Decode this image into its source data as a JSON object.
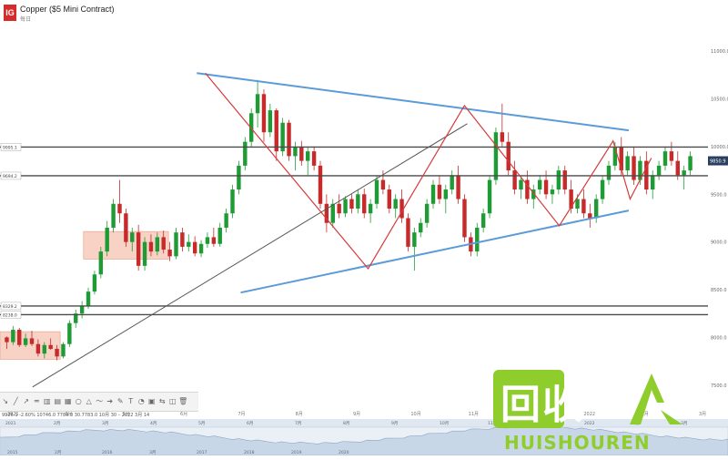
{
  "header": {
    "logo_text": "IG",
    "title": "Copper ($5 Mini Contract)",
    "subtitle": "每日"
  },
  "toolbar": {
    "icons": [
      "cursor-icon",
      "line-icon",
      "ray-icon",
      "hline-icon",
      "channel-icon",
      "fib-icon",
      "rect-icon",
      "ellipse-icon",
      "triangle-icon",
      "path-icon",
      "arrow-icon",
      "brush-icon",
      "text-icon",
      "callout-icon",
      "note-icon",
      "ruler-icon",
      "measure-icon",
      "trash-icon"
    ],
    "glyphs": [
      "↘",
      "╱",
      "↗",
      "═",
      "▥",
      "▤",
      "▦",
      "○",
      "△",
      "〜",
      "➔",
      "✎",
      "T",
      "◔",
      "▣",
      "⇆",
      "◫",
      "🗑"
    ]
  },
  "ohlc_text": "9926.1  -2.60%  10746.0  7789.0  30.7783.0  10月 30 – 2022 3月 14",
  "navigator": {
    "top_labels": [
      "2021",
      "2月",
      "3月",
      "4月",
      "5月",
      "6月",
      "7月",
      "8月",
      "9月",
      "10月",
      "11月",
      "12月",
      "2022",
      "2月",
      "3月"
    ],
    "bottom_labels": [
      "2015",
      "2月",
      "2016",
      "3月",
      "2017",
      "2018",
      "2019",
      "2020"
    ]
  },
  "watermark": {
    "cn": "回收",
    "en": "HUISHOUREN"
  },
  "colors": {
    "up": "#1f9b35",
    "down": "#c62a2a",
    "trend_blue": "#5a9bd8",
    "zigzag_red": "#d63b3b",
    "hline": "#4a4a4a",
    "zone_fill": "#f6c3b1",
    "watermark": "#8fcd2d",
    "price_badge": "#2a3f5f"
  },
  "chart_data": {
    "type": "candlestick",
    "title": "Copper ($5 Mini Contract)",
    "xlabel": "",
    "ylabel": "",
    "x_ticks": [
      "2021",
      "3月",
      "5月",
      "6月",
      "7月",
      "8月",
      "9月",
      "10月",
      "11月",
      "12月",
      "2022",
      "2月",
      "3月"
    ],
    "y_ticks": [
      7500,
      8000,
      8500,
      9000,
      9500,
      10000,
      10500,
      11000
    ],
    "y_tick_labels": [
      "7500.0",
      "8000.0",
      "8500.0",
      "9000.0",
      "9500.0",
      "10000.0",
      "10500.0",
      "11000.0"
    ],
    "ylim": [
      7450,
      11250
    ],
    "current_price": 9850.9,
    "current_price_label": "9850.9",
    "horizontal_levels": [
      {
        "value": 9995.1,
        "label": "9995.1"
      },
      {
        "value": 9694.2,
        "label": "9694.2"
      },
      {
        "value": 8329.2,
        "label": "8329.2"
      },
      {
        "value": 8238.0,
        "label": "8238.0"
      }
    ],
    "trend_lines": [
      {
        "name": "upper",
        "color": "blue",
        "from": {
          "t": 0.278,
          "v": 10770
        },
        "to": {
          "t": 0.888,
          "v": 10170
        }
      },
      {
        "name": "lower",
        "color": "blue",
        "from": {
          "t": 0.34,
          "v": 8470
        },
        "to": {
          "t": 0.888,
          "v": 9330
        }
      },
      {
        "name": "diagonal",
        "color": "gray",
        "from": {
          "t": 0.046,
          "v": 7480
        },
        "to": {
          "t": 0.66,
          "v": 10240
        }
      }
    ],
    "zigzag": [
      {
        "t": 0.29,
        "v": 10770
      },
      {
        "t": 0.52,
        "v": 8720
      },
      {
        "t": 0.656,
        "v": 10430
      },
      {
        "t": 0.79,
        "v": 9170
      },
      {
        "t": 0.866,
        "v": 10060
      },
      {
        "t": 0.89,
        "v": 9450
      },
      {
        "t": 0.92,
        "v": 9880
      }
    ],
    "zones": [
      {
        "t0": 0.0,
        "t1": 0.085,
        "v0": 7770,
        "v1": 8060
      },
      {
        "t0": 0.118,
        "t1": 0.238,
        "v0": 8820,
        "v1": 9110
      }
    ],
    "candles": [
      [
        8000,
        8010,
        7880,
        7950
      ],
      [
        7950,
        8120,
        7920,
        8080
      ],
      [
        8080,
        8100,
        7900,
        7920
      ],
      [
        7920,
        8040,
        7900,
        7990
      ],
      [
        7990,
        8070,
        7910,
        7930
      ],
      [
        7930,
        7980,
        7800,
        7830
      ],
      [
        7830,
        7950,
        7780,
        7920
      ],
      [
        7920,
        7990,
        7870,
        7880
      ],
      [
        7880,
        7920,
        7760,
        7800
      ],
      [
        7800,
        7950,
        7780,
        7930
      ],
      [
        7930,
        8180,
        7900,
        8150
      ],
      [
        8150,
        8290,
        8100,
        8250
      ],
      [
        8250,
        8380,
        8200,
        8330
      ],
      [
        8330,
        8520,
        8300,
        8480
      ],
      [
        8480,
        8700,
        8450,
        8660
      ],
      [
        8660,
        8950,
        8620,
        8900
      ],
      [
        8900,
        9220,
        8850,
        9150
      ],
      [
        9150,
        9450,
        9100,
        9400
      ],
      [
        9400,
        9650,
        9200,
        9300
      ],
      [
        9300,
        9350,
        8950,
        9000
      ],
      [
        9000,
        9150,
        8900,
        9100
      ],
      [
        9100,
        9180,
        8700,
        8750
      ],
      [
        8750,
        9050,
        8700,
        9000
      ],
      [
        9000,
        9080,
        8850,
        8900
      ],
      [
        8900,
        9100,
        8860,
        9050
      ],
      [
        9050,
        9120,
        8880,
        8920
      ],
      [
        8920,
        9000,
        8800,
        8850
      ],
      [
        8850,
        9150,
        8820,
        9100
      ],
      [
        9100,
        9150,
        8900,
        8950
      ],
      [
        8950,
        9080,
        8900,
        9000
      ],
      [
        9000,
        9060,
        8850,
        8880
      ],
      [
        8880,
        9020,
        8840,
        8980
      ],
      [
        8980,
        9100,
        8940,
        9050
      ],
      [
        9050,
        9150,
        8950,
        8980
      ],
      [
        8980,
        9200,
        8950,
        9150
      ],
      [
        9150,
        9350,
        9100,
        9300
      ],
      [
        9300,
        9600,
        9250,
        9550
      ],
      [
        9550,
        9850,
        9500,
        9800
      ],
      [
        9800,
        10100,
        9750,
        10050
      ],
      [
        10050,
        10400,
        10000,
        10350
      ],
      [
        10350,
        10700,
        10200,
        10550
      ],
      [
        10550,
        10600,
        10050,
        10150
      ],
      [
        10150,
        10450,
        10100,
        10380
      ],
      [
        10380,
        10400,
        9850,
        9950
      ],
      [
        9950,
        10300,
        9900,
        10250
      ],
      [
        10250,
        10280,
        9850,
        9900
      ],
      [
        9900,
        10050,
        9750,
        10000
      ],
      [
        10000,
        10060,
        9800,
        9850
      ],
      [
        9850,
        10000,
        9700,
        9950
      ],
      [
        9950,
        10000,
        9750,
        9800
      ],
      [
        9800,
        9850,
        9350,
        9400
      ],
      [
        9400,
        9500,
        9100,
        9200
      ],
      [
        9200,
        9450,
        9150,
        9400
      ],
      [
        9400,
        9500,
        9250,
        9300
      ],
      [
        9300,
        9480,
        9260,
        9450
      ],
      [
        9450,
        9500,
        9300,
        9350
      ],
      [
        9350,
        9550,
        9300,
        9500
      ],
      [
        9500,
        9560,
        9250,
        9300
      ],
      [
        9300,
        9450,
        9200,
        9400
      ],
      [
        9400,
        9700,
        9350,
        9650
      ],
      [
        9650,
        9750,
        9500,
        9550
      ],
      [
        9550,
        9600,
        9300,
        9350
      ],
      [
        9350,
        9500,
        9250,
        9450
      ],
      [
        9450,
        9550,
        9200,
        9250
      ],
      [
        9250,
        9300,
        8900,
        8950
      ],
      [
        8950,
        9150,
        8700,
        9100
      ],
      [
        9100,
        9250,
        9050,
        9200
      ],
      [
        9200,
        9450,
        9150,
        9400
      ],
      [
        9400,
        9650,
        9350,
        9600
      ],
      [
        9600,
        9700,
        9400,
        9450
      ],
      [
        9450,
        9600,
        9300,
        9550
      ],
      [
        9550,
        9750,
        9500,
        9700
      ],
      [
        9700,
        9800,
        9400,
        9450
      ],
      [
        9450,
        9500,
        9000,
        9050
      ],
      [
        9050,
        9100,
        8850,
        8900
      ],
      [
        8900,
        9200,
        8850,
        9150
      ],
      [
        9150,
        9350,
        9100,
        9300
      ],
      [
        9300,
        9700,
        9250,
        9650
      ],
      [
        9650,
        10200,
        9600,
        10150
      ],
      [
        10150,
        10450,
        10000,
        10050
      ],
      [
        10050,
        10150,
        9700,
        9750
      ],
      [
        9750,
        9850,
        9500,
        9550
      ],
      [
        9550,
        9700,
        9450,
        9650
      ],
      [
        9650,
        9750,
        9400,
        9450
      ],
      [
        9450,
        9600,
        9350,
        9550
      ],
      [
        9550,
        9700,
        9500,
        9650
      ],
      [
        9650,
        9750,
        9450,
        9500
      ],
      [
        9500,
        9600,
        9400,
        9550
      ],
      [
        9550,
        9800,
        9500,
        9750
      ],
      [
        9750,
        9800,
        9500,
        9550
      ],
      [
        9550,
        9650,
        9300,
        9350
      ],
      [
        9350,
        9500,
        9300,
        9450
      ],
      [
        9450,
        9550,
        9250,
        9300
      ],
      [
        9300,
        9400,
        9150,
        9250
      ],
      [
        9250,
        9500,
        9200,
        9450
      ],
      [
        9450,
        9700,
        9400,
        9650
      ],
      [
        9650,
        9850,
        9600,
        9800
      ],
      [
        9800,
        10050,
        9750,
        10000
      ],
      [
        10000,
        10100,
        9700,
        9750
      ],
      [
        9750,
        9950,
        9700,
        9900
      ],
      [
        9900,
        10000,
        9600,
        9650
      ],
      [
        9650,
        9900,
        9600,
        9850
      ],
      [
        9850,
        9950,
        9500,
        9550
      ],
      [
        9550,
        9750,
        9450,
        9700
      ],
      [
        9700,
        9850,
        9650,
        9800
      ],
      [
        9800,
        10000,
        9750,
        9950
      ],
      [
        9950,
        10050,
        9800,
        9850
      ],
      [
        9850,
        9950,
        9650,
        9700
      ],
      [
        9700,
        9800,
        9550,
        9750
      ],
      [
        9750,
        9950,
        9700,
        9900
      ]
    ]
  }
}
